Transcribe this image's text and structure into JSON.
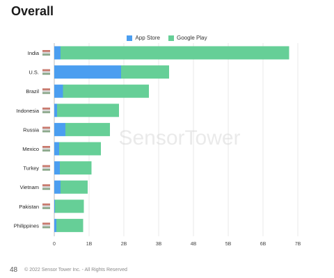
{
  "page": {
    "title": "Overall",
    "page_number": "48",
    "copyright": "© 2022 Sensor Tower Inc. - All Rights Reserved",
    "watermark": "SensorTower"
  },
  "colors": {
    "app_store": "#4b9ef0",
    "google_play": "#66cf97",
    "grid": "#e3e3e3",
    "axis": "#bdbdbd"
  },
  "chart_data": {
    "type": "bar",
    "orientation": "horizontal",
    "stacked": true,
    "categories": [
      "India",
      "U.S.",
      "Brazil",
      "Indonesia",
      "Russia",
      "Mexico",
      "Turkey",
      "Vietnam",
      "Pakistan",
      "Philippines"
    ],
    "series": [
      {
        "name": "App Store",
        "values": [
          0.18,
          1.92,
          0.25,
          0.08,
          0.32,
          0.14,
          0.16,
          0.18,
          0.02,
          0.06
        ]
      },
      {
        "name": "Google Play",
        "values": [
          6.57,
          1.38,
          2.47,
          1.78,
          1.28,
          1.2,
          0.91,
          0.78,
          0.83,
          0.77
        ]
      }
    ],
    "xlim": [
      0,
      7
    ],
    "xticks": [
      0,
      1,
      2,
      3,
      4,
      5,
      6,
      7
    ],
    "xtick_labels": [
      "0",
      "1B",
      "2B",
      "3B",
      "4B",
      "5B",
      "6B",
      "7B"
    ],
    "legend": [
      "App Store",
      "Google Play"
    ],
    "legend_position": "top-center",
    "grid": "vertical"
  }
}
